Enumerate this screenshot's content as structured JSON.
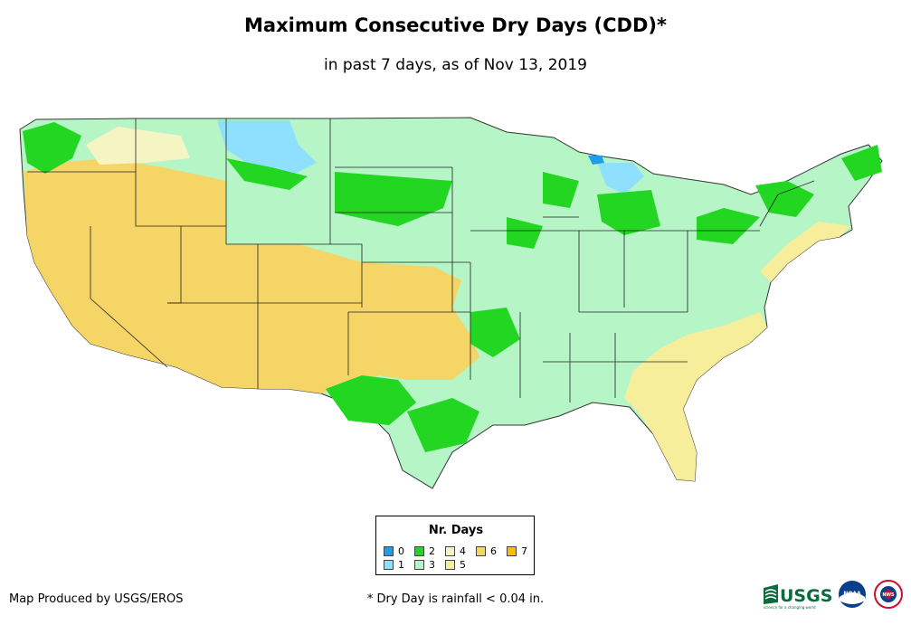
{
  "header": {
    "title": "Maximum Consecutive Dry Days (CDD)*",
    "subtitle": "in past 7 days, as of Nov 13, 2019"
  },
  "legend": {
    "title": "Nr. Days",
    "items": [
      {
        "label": "0",
        "color": "#1e9ee8"
      },
      {
        "label": "1",
        "color": "#8fe0ff"
      },
      {
        "label": "2",
        "color": "#22d622"
      },
      {
        "label": "3",
        "color": "#b6f5c6"
      },
      {
        "label": "4",
        "color": "#f5f5c4"
      },
      {
        "label": "5",
        "color": "#f7ee9c"
      },
      {
        "label": "6",
        "color": "#f5d565"
      },
      {
        "label": "7",
        "color": "#f5c000"
      }
    ]
  },
  "footer": {
    "credit": "Map Produced by USGS/EROS",
    "footnote": "* Dry Day is rainfall < 0.04 in."
  },
  "logos": {
    "usgs": "USGS",
    "usgs_tagline": "science for a changing world",
    "noaa": "NOAA",
    "nws": "NWS"
  }
}
